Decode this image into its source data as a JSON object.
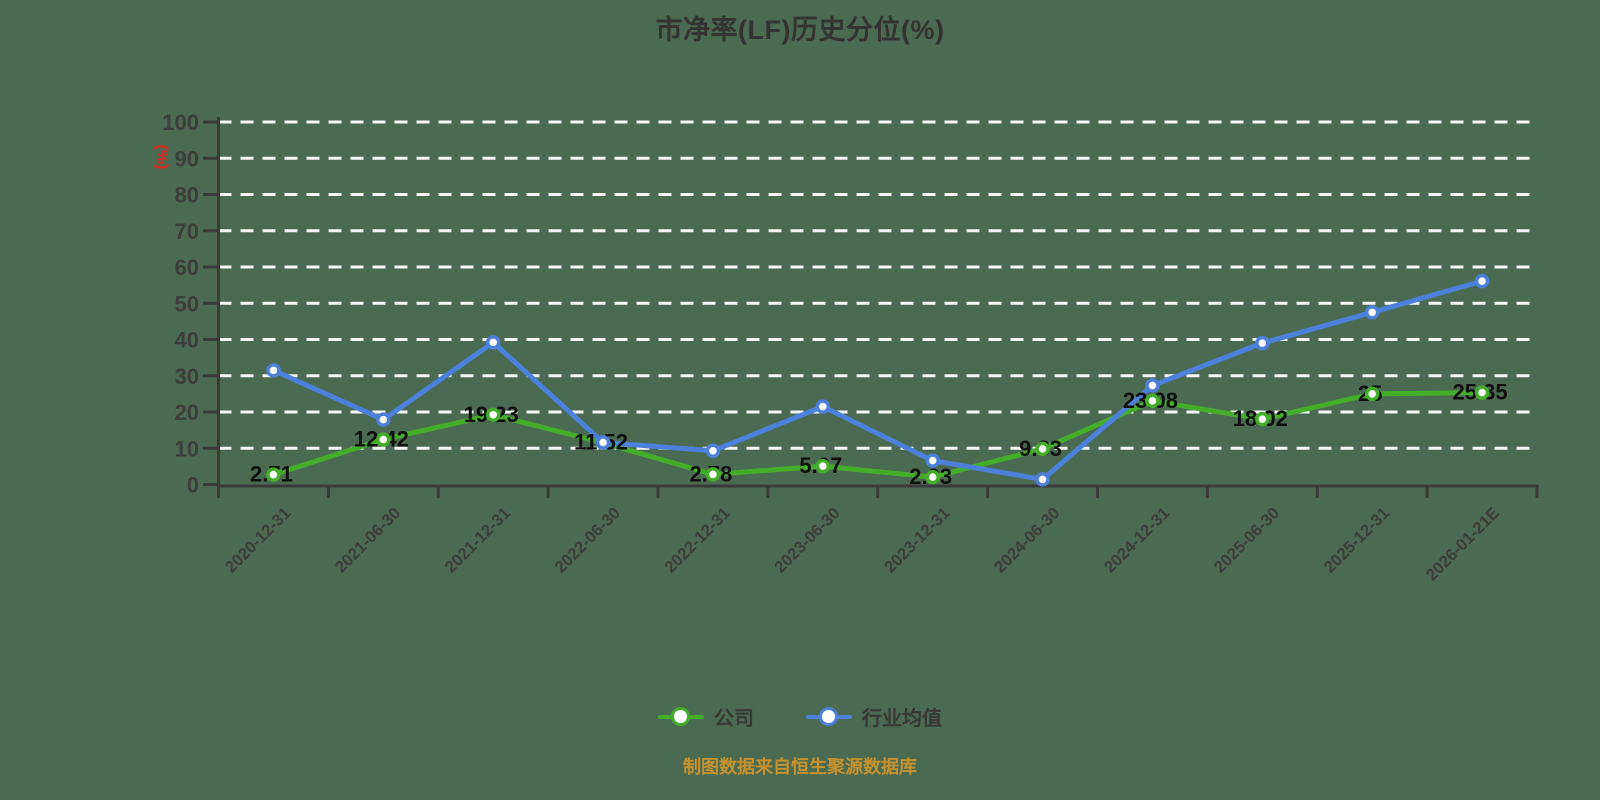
{
  "background_color": "#4b6a52",
  "title": "市净率(LF)历史分位(%)",
  "y_axis_unit": "(%)",
  "footer": "制图数据来自恒生聚源数据库",
  "colors": {
    "title": "#333333",
    "axis": "#3a3a3a",
    "tick_label": "#3d3d3d",
    "grid": "#ffffff",
    "unit_label": "#e0261a",
    "data_label": "#0f0f0f",
    "footer": "#c5922f",
    "legend_label": "#383838",
    "marker_fill": "#ffffff",
    "company_series": "#44ae2b",
    "industry_series": "#4c80da"
  },
  "legend": {
    "items": [
      {
        "key": "company",
        "label": "公司",
        "color": "#44ae2b"
      },
      {
        "key": "industry",
        "label": "行业均值",
        "color": "#4c80da"
      }
    ]
  },
  "chart_data": {
    "type": "line",
    "title": "市净率(LF)历史分位(%)",
    "xlabel": "",
    "ylabel": "(%)",
    "ylim": [
      0,
      100
    ],
    "y_tick_step": 10,
    "grid": "horizontal-white-dashed",
    "legend_position": "bottom",
    "categories": [
      "2020-12-31",
      "2021-06-30",
      "2021-12-31",
      "2022-06-30",
      "2022-12-31",
      "2023-06-30",
      "2023-12-31",
      "2024-06-30",
      "2024-12-31",
      "2025-06-30",
      "2025-12-31",
      "2026-01-21E"
    ],
    "series": [
      {
        "key": "company",
        "name": "公司",
        "color": "#44ae2b",
        "values": [
          2.71,
          12.42,
          19.23,
          11.52,
          2.78,
          5.07,
          2.03,
          9.83,
          23.08,
          18.02,
          25,
          25.35
        ],
        "point_labels": [
          "2.71",
          "12.42",
          "19.23",
          "11.52",
          "2.78",
          "5.07",
          "2.03",
          "9.83",
          "23.08",
          "18.02",
          "25",
          "25.35"
        ],
        "show_point_labels": true
      },
      {
        "key": "industry",
        "name": "行业均值",
        "color": "#4c80da",
        "values": [
          31.5,
          17.9,
          39.2,
          11.6,
          9.3,
          21.5,
          6.6,
          1.4,
          27.3,
          39,
          47.5,
          56.1
        ],
        "show_point_labels": false
      }
    ]
  }
}
